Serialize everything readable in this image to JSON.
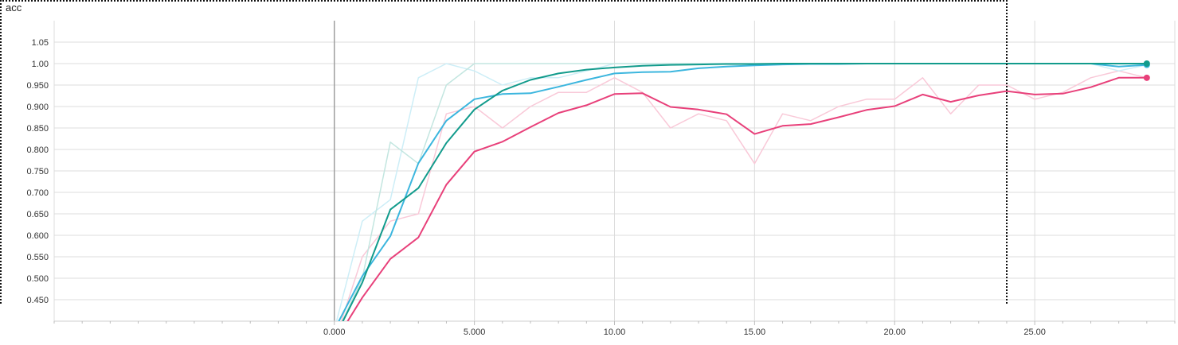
{
  "chart_data": {
    "type": "line",
    "title": "acc",
    "xlim": [
      -10,
      30
    ],
    "ylim": [
      0.4,
      1.1
    ],
    "x_ticks": [
      0,
      5,
      10,
      15,
      20,
      25
    ],
    "x_tick_labels": [
      "0.000",
      "5.000",
      "10.00",
      "15.00",
      "20.00",
      "25.00"
    ],
    "y_ticks": [
      0.45,
      0.5,
      0.55,
      0.6,
      0.65,
      0.7,
      0.75,
      0.8,
      0.85,
      0.9,
      0.95,
      1.0,
      1.05
    ],
    "y_tick_labels": [
      "0.450",
      "0.500",
      "0.550",
      "0.600",
      "0.650",
      "0.700",
      "0.750",
      "0.800",
      "0.850",
      "0.900",
      "0.950",
      "1.00",
      "1.05"
    ],
    "grid": true,
    "series": [
      {
        "color": "#e8407a",
        "raw_color": "#f9c9d8",
        "x": [
          0,
          1,
          2,
          3,
          4,
          5,
          6,
          7,
          8,
          9,
          10,
          11,
          12,
          13,
          14,
          15,
          16,
          17,
          18,
          19,
          20,
          21,
          22,
          23,
          24,
          25,
          26,
          27,
          28,
          29
        ],
        "raw": [
          0.35,
          0.55,
          0.633,
          0.65,
          0.883,
          0.9,
          0.85,
          0.9,
          0.933,
          0.933,
          0.967,
          0.933,
          0.85,
          0.883,
          0.867,
          0.767,
          0.883,
          0.867,
          0.9,
          0.917,
          0.917,
          0.967,
          0.883,
          0.95,
          0.95,
          0.917,
          0.933,
          0.967,
          0.983,
          0.967
        ],
        "smoothed": [
          0.35,
          0.455,
          0.545,
          0.595,
          0.718,
          0.795,
          0.818,
          0.852,
          0.885,
          0.903,
          0.929,
          0.931,
          0.899,
          0.893,
          0.882,
          0.836,
          0.855,
          0.859,
          0.875,
          0.892,
          0.901,
          0.928,
          0.911,
          0.926,
          0.936,
          0.928,
          0.93,
          0.945,
          0.967,
          0.967
        ]
      },
      {
        "color": "#3cb6de",
        "raw_color": "#cdeef7",
        "x": [
          0,
          1,
          2,
          3,
          4,
          5,
          6,
          7,
          8,
          9,
          10,
          11,
          12,
          13,
          14,
          15,
          16,
          17,
          18,
          19,
          20,
          21,
          22,
          23,
          24,
          25,
          26,
          27,
          28,
          29
        ],
        "raw": [
          0.38,
          0.633,
          0.683,
          0.967,
          1.0,
          0.983,
          0.95,
          0.967,
          0.967,
          0.983,
          1.0,
          1.0,
          1.0,
          1.0,
          1.0,
          1.0,
          1.0,
          1.0,
          1.0,
          1.0,
          1.0,
          1.0,
          1.0,
          1.0,
          1.0,
          1.0,
          1.0,
          1.0,
          0.983,
          0.997
        ],
        "smoothed": [
          0.38,
          0.505,
          0.598,
          0.768,
          0.867,
          0.917,
          0.929,
          0.931,
          0.946,
          0.962,
          0.977,
          0.98,
          0.981,
          0.989,
          0.993,
          0.996,
          0.998,
          0.999,
          0.999,
          1.0,
          1.0,
          1.0,
          1.0,
          1.0,
          1.0,
          1.0,
          1.0,
          1.0,
          0.993,
          0.997
        ]
      },
      {
        "color": "#129b8c",
        "raw_color": "#c3e6e0",
        "x": [
          0,
          1,
          2,
          3,
          4,
          5,
          6,
          7,
          8,
          9,
          10,
          11,
          12,
          13,
          14,
          15,
          16,
          17,
          18,
          19,
          20,
          21,
          22,
          23,
          24,
          25,
          26,
          27,
          28,
          29
        ],
        "raw": [
          0.36,
          0.5,
          0.817,
          0.767,
          0.95,
          1.0,
          1.0,
          1.0,
          1.0,
          1.0,
          1.0,
          1.0,
          1.0,
          1.0,
          1.0,
          1.0,
          1.0,
          1.0,
          1.0,
          1.0,
          1.0,
          1.0,
          1.0,
          1.0,
          1.0,
          1.0,
          1.0,
          1.0,
          1.0,
          1.0
        ],
        "smoothed": [
          0.36,
          0.49,
          0.66,
          0.71,
          0.815,
          0.893,
          0.937,
          0.962,
          0.977,
          0.986,
          0.991,
          0.995,
          0.997,
          0.998,
          0.999,
          0.999,
          1.0,
          1.0,
          1.0,
          1.0,
          1.0,
          1.0,
          1.0,
          1.0,
          1.0,
          1.0,
          1.0,
          1.0,
          1.0,
          1.0
        ]
      }
    ]
  }
}
